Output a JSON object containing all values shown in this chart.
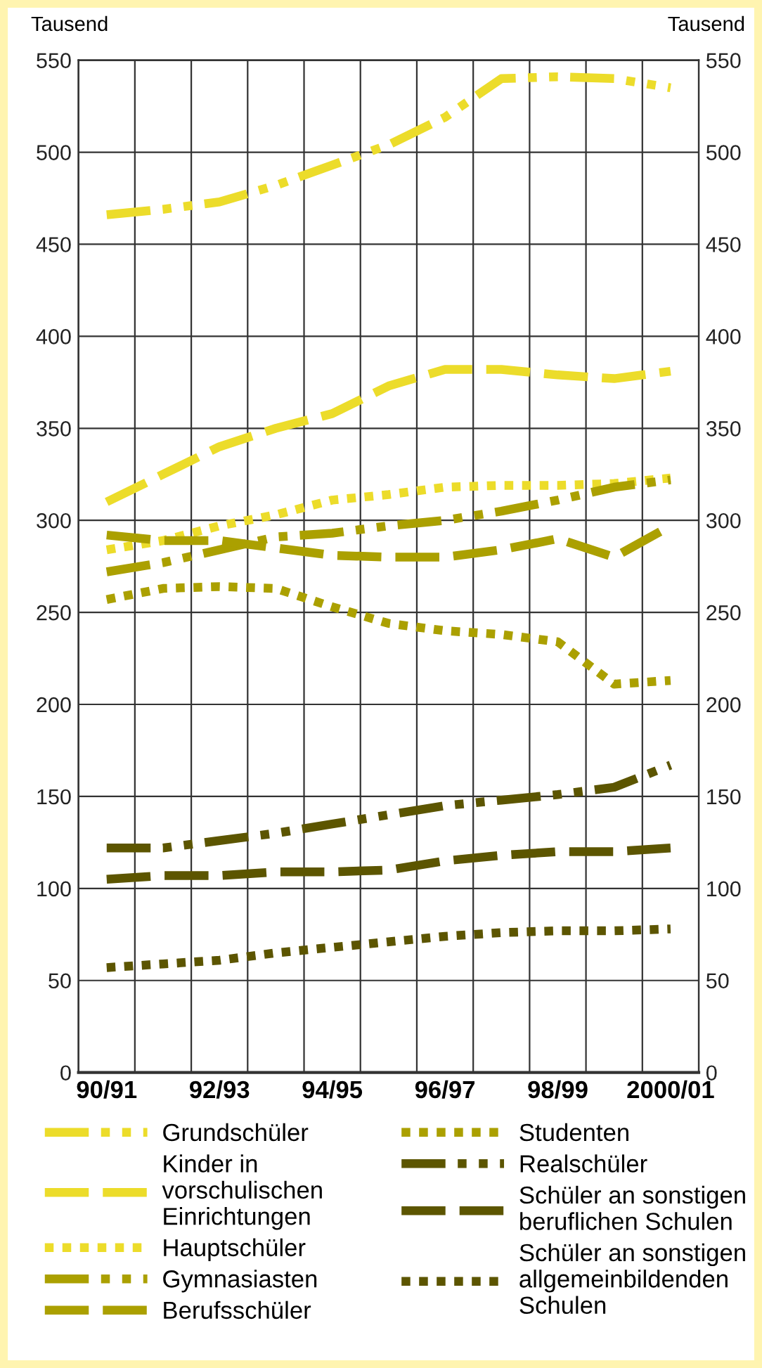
{
  "chart_data": {
    "type": "line",
    "ylabel": "Tausend",
    "y2label": "Tausend",
    "categories": [
      "90/91",
      null,
      "92/93",
      null,
      "94/95",
      null,
      "96/97",
      null,
      "98/99",
      null,
      "2000/01"
    ],
    "ylim": [
      0,
      550
    ],
    "yticks": [
      0,
      50,
      100,
      150,
      200,
      250,
      300,
      350,
      400,
      450,
      500,
      550
    ],
    "y2lim": [
      0,
      550
    ],
    "y2ticks": [
      0,
      50,
      100,
      150,
      200,
      250,
      300,
      350,
      400,
      450,
      500,
      550
    ],
    "grid": true,
    "legend": "bottom",
    "marker": "none",
    "series": [
      {
        "name": "Grundschüler",
        "color": "#ecdc2a",
        "line_style": "dashdot",
        "values": [
          466,
          469,
          473,
          482,
          493,
          504,
          519,
          540,
          541,
          540,
          535
        ]
      },
      {
        "name": "Kinder in vorschulischen Einrichtungen",
        "color": "#ecdc2a",
        "line_style": "dashed",
        "values": [
          310,
          325,
          340,
          350,
          358,
          373,
          382,
          382,
          379,
          377,
          381
        ]
      },
      {
        "name": "Hauptschüler",
        "color": "#ecdc2a",
        "line_style": "dotted",
        "values": [
          284,
          289,
          297,
          303,
          311,
          314,
          318,
          319,
          319,
          320,
          323
        ]
      },
      {
        "name": "Gymnasiasten",
        "color": "#aba000",
        "line_style": "dashdot",
        "values": [
          272,
          277,
          284,
          291,
          293,
          297,
          300,
          305,
          311,
          318,
          322
        ]
      },
      {
        "name": "Berufsschüler",
        "color": "#aba000",
        "line_style": "dashed",
        "values": [
          292,
          289,
          289,
          285,
          281,
          280,
          280,
          284,
          290,
          280,
          297
        ]
      },
      {
        "name": "Studenten",
        "color": "#aba000",
        "line_style": "dotted",
        "values": [
          257,
          263,
          264,
          263,
          253,
          244,
          240,
          238,
          234,
          211,
          213
        ]
      },
      {
        "name": "Realschüler",
        "color": "#5c5500",
        "line_style": "dashdot",
        "values": [
          122,
          122,
          126,
          130,
          135,
          140,
          145,
          148,
          151,
          155,
          167
        ]
      },
      {
        "name": "Schüler an sonstigen beruflichen Schulen",
        "color": "#5c5500",
        "line_style": "dashed",
        "values": [
          105,
          107,
          107,
          109,
          109,
          110,
          115,
          118,
          120,
          120,
          122
        ]
      },
      {
        "name": "Schüler an sonstigen allgemeinbildenden Schulen",
        "color": "#5c5500",
        "line_style": "dotted",
        "values": [
          57,
          59,
          61,
          65,
          68,
          71,
          74,
          76,
          77,
          77,
          78
        ]
      }
    ]
  }
}
